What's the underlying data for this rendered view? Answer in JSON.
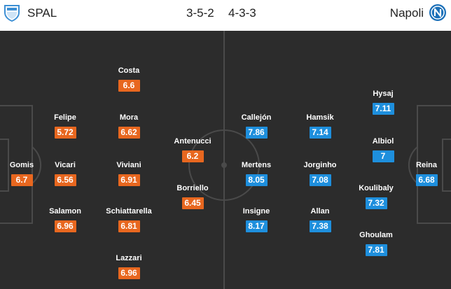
{
  "header": {
    "home_team": "SPAL",
    "home_formation": "3-5-2",
    "away_formation": "4-3-3",
    "away_team": "Napoli",
    "home_crest": "spal-crest-icon",
    "away_crest": "napoli-crest-icon"
  },
  "colors": {
    "home_rating": "#e8671f",
    "away_rating": "#1e8fdd",
    "pitch": "#2c2c2c",
    "lines": "#4a4a4a"
  },
  "home_players": [
    {
      "name": "Gomis",
      "rating": "6.7"
    },
    {
      "name": "Felipe",
      "rating": "5.72"
    },
    {
      "name": "Vicari",
      "rating": "6.56"
    },
    {
      "name": "Salamon",
      "rating": "6.96"
    },
    {
      "name": "Costa",
      "rating": "6.6"
    },
    {
      "name": "Mora",
      "rating": "6.62"
    },
    {
      "name": "Viviani",
      "rating": "6.91"
    },
    {
      "name": "Schiattarella",
      "rating": "6.81"
    },
    {
      "name": "Lazzari",
      "rating": "6.96"
    },
    {
      "name": "Antenucci",
      "rating": "6.2"
    },
    {
      "name": "Borriello",
      "rating": "6.45"
    }
  ],
  "away_players": [
    {
      "name": "Callejón",
      "rating": "7.86"
    },
    {
      "name": "Mertens",
      "rating": "8.05"
    },
    {
      "name": "Insigne",
      "rating": "8.17"
    },
    {
      "name": "Hamsik",
      "rating": "7.14"
    },
    {
      "name": "Jorginho",
      "rating": "7.08"
    },
    {
      "name": "Allan",
      "rating": "7.38"
    },
    {
      "name": "Hysaj",
      "rating": "7.11"
    },
    {
      "name": "Albiol",
      "rating": "7"
    },
    {
      "name": "Koulibaly",
      "rating": "7.32"
    },
    {
      "name": "Ghoulam",
      "rating": "7.81"
    },
    {
      "name": "Reina",
      "rating": "6.68"
    }
  ]
}
